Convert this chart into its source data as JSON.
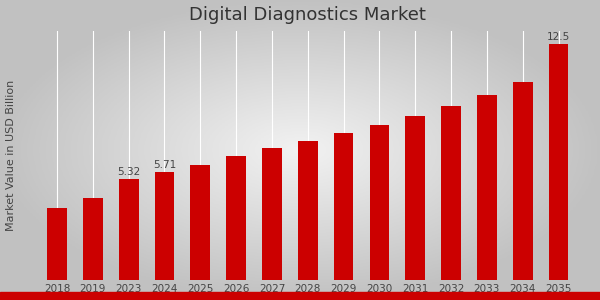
{
  "title": "Digital Diagnostics Market",
  "ylabel": "Market Value in USD Billion",
  "categories": [
    "2018",
    "2019",
    "2023",
    "2024",
    "2025",
    "2026",
    "2027",
    "2028",
    "2029",
    "2030",
    "2031",
    "2032",
    "2033",
    "2034",
    "2035"
  ],
  "values": [
    3.8,
    4.3,
    5.32,
    5.71,
    6.1,
    6.55,
    7.0,
    7.35,
    7.75,
    8.2,
    8.7,
    9.2,
    9.8,
    10.5,
    12.5
  ],
  "bar_color": "#cc0000",
  "labeled_indices": [
    2,
    3,
    14
  ],
  "labels": {
    "2": "5.32",
    "3": "5.71",
    "14": "12.5"
  },
  "bg_color_center": "#f0f0f0",
  "bg_color_edge": "#c8c8c8",
  "title_fontsize": 13,
  "label_fontsize": 7.5,
  "tick_fontsize": 7.5,
  "ylabel_fontsize": 8,
  "ylim": [
    0,
    13.2
  ],
  "bottom_bar_color": "#cc0000",
  "bottom_bar_height": 8,
  "grid_color": "#ffffff",
  "grid_linewidth": 0.8
}
